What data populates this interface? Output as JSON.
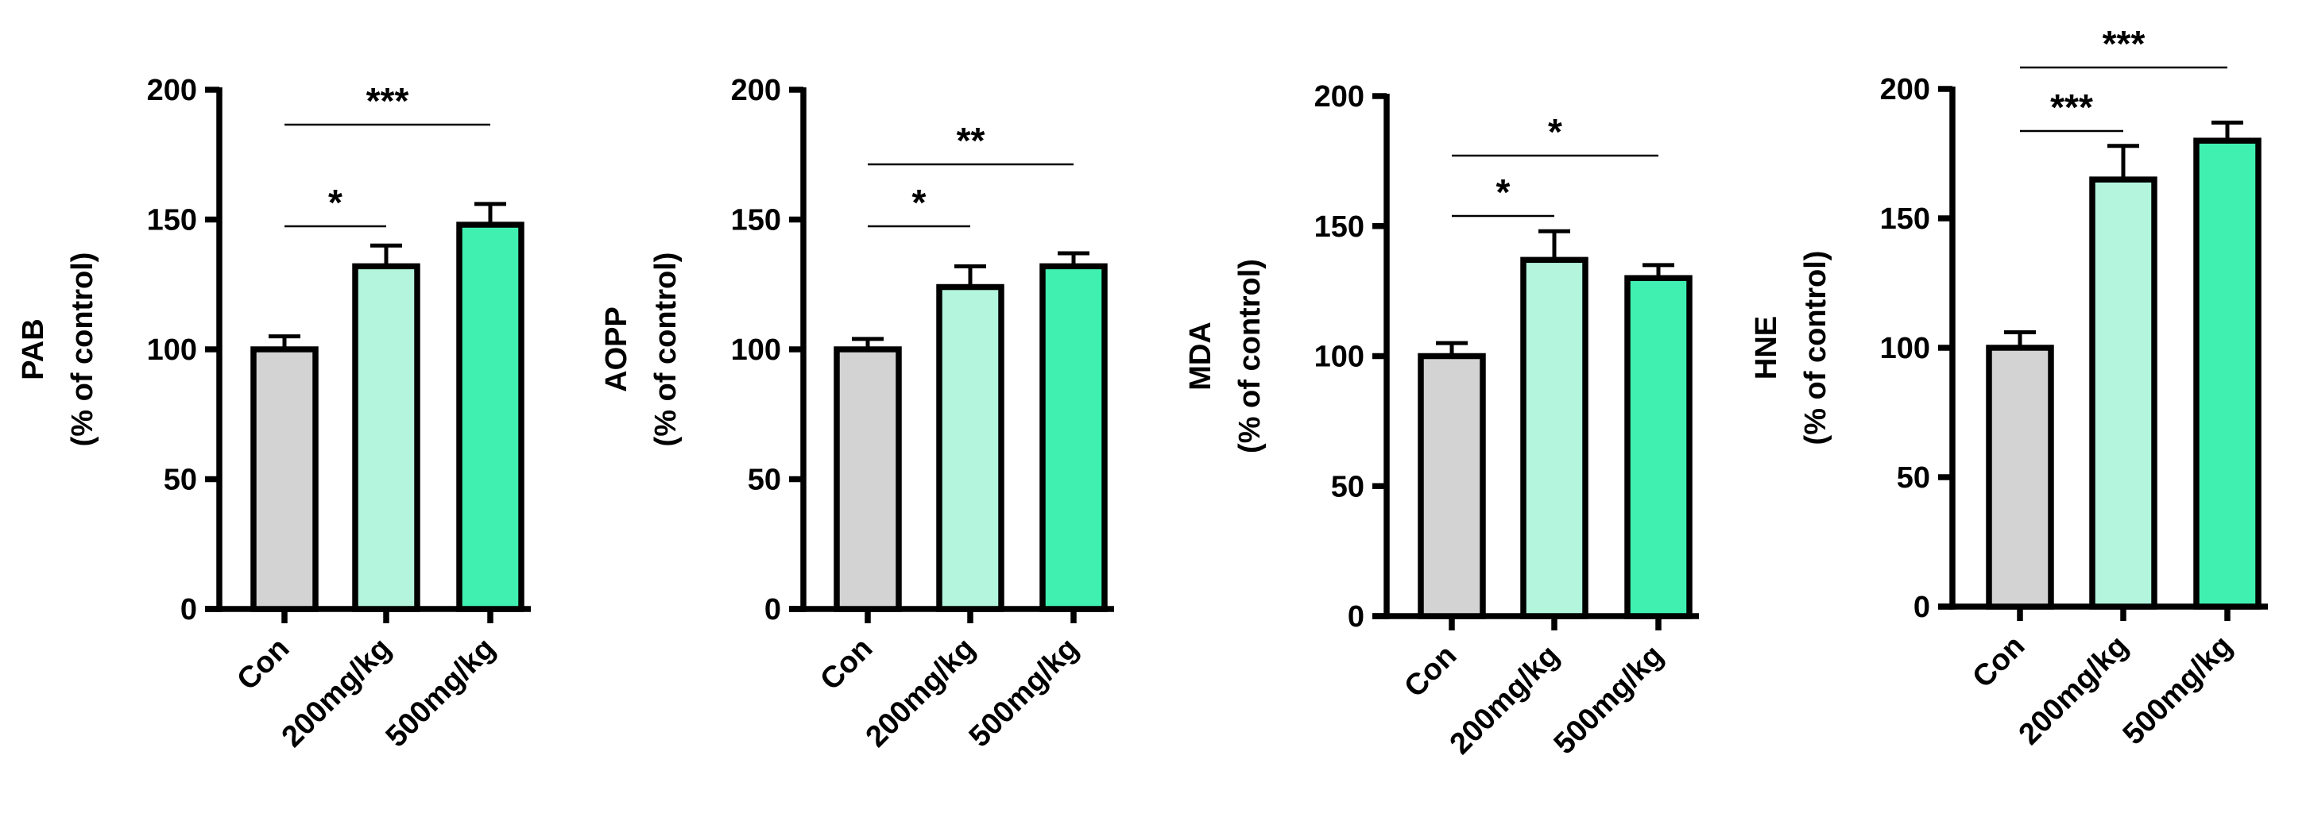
{
  "chart_data": [
    {
      "type": "bar",
      "ylabel_line1": "PAB",
      "ylabel_line2": "(% of control)",
      "categories": [
        "Con",
        "200mg/kg",
        "500mg/kg"
      ],
      "values": [
        100,
        132,
        148
      ],
      "errors": [
        5,
        8,
        8
      ],
      "ylim": [
        0,
        200
      ],
      "yticks": [
        "0",
        "50",
        "100",
        "150",
        "200"
      ],
      "colors": [
        "#d3d3d3",
        "#b3f5dd",
        "#40f0b0"
      ],
      "significance": [
        {
          "from": 0,
          "to": 1,
          "label": "*"
        },
        {
          "from": 0,
          "to": 2,
          "label": "***"
        }
      ]
    },
    {
      "type": "bar",
      "ylabel_line1": "AOPP",
      "ylabel_line2": "(% of control)",
      "categories": [
        "Con",
        "200mg/kg",
        "500mg/kg"
      ],
      "values": [
        100,
        124,
        132
      ],
      "errors": [
        4,
        8,
        5
      ],
      "ylim": [
        0,
        200
      ],
      "yticks": [
        "0",
        "50",
        "100",
        "150",
        "200"
      ],
      "colors": [
        "#d3d3d3",
        "#b3f5dd",
        "#40f0b0"
      ],
      "significance": [
        {
          "from": 0,
          "to": 1,
          "label": "*"
        },
        {
          "from": 0,
          "to": 2,
          "label": "**"
        }
      ]
    },
    {
      "type": "bar",
      "ylabel_line1": "MDA",
      "ylabel_line2": "(% of control)",
      "categories": [
        "Con",
        "200mg/kg",
        "500mg/kg"
      ],
      "values": [
        100,
        137,
        130
      ],
      "errors": [
        5,
        11,
        5
      ],
      "ylim": [
        0,
        200
      ],
      "yticks": [
        "0",
        "50",
        "100",
        "150",
        "200"
      ],
      "colors": [
        "#d3d3d3",
        "#b3f5dd",
        "#40f0b0"
      ],
      "significance": [
        {
          "from": 0,
          "to": 1,
          "label": "*"
        },
        {
          "from": 0,
          "to": 2,
          "label": "*"
        }
      ]
    },
    {
      "type": "bar",
      "ylabel_line1": "HNE",
      "ylabel_line2": "(% of control)",
      "categories": [
        "Con",
        "200mg/kg",
        "500mg/kg"
      ],
      "values": [
        100,
        165,
        180
      ],
      "errors": [
        6,
        13,
        7
      ],
      "ylim": [
        0,
        200
      ],
      "yticks": [
        "0",
        "50",
        "100",
        "150",
        "200"
      ],
      "colors": [
        "#d3d3d3",
        "#b3f5dd",
        "#40f0b0"
      ],
      "significance": [
        {
          "from": 0,
          "to": 1,
          "label": "***"
        },
        {
          "from": 0,
          "to": 2,
          "label": "***"
        }
      ]
    }
  ]
}
